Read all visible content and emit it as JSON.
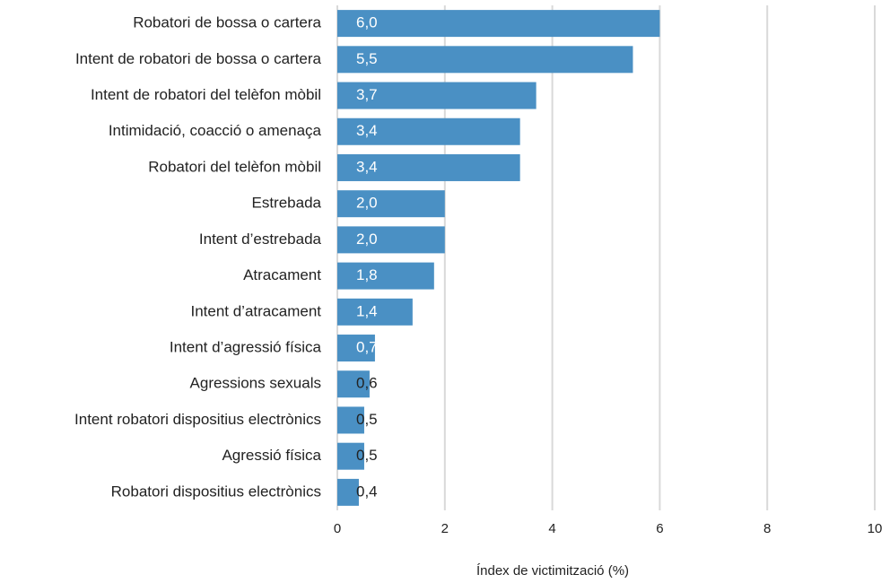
{
  "chart_data": {
    "type": "bar",
    "orientation": "horizontal",
    "x_label": "Índex de victimització (%)",
    "categories": [
      "Robatori de bossa o cartera",
      "Intent de robatori de bossa o cartera",
      "Intent de robatori del telèfon mòbil",
      "Intimidació, coacció o amenaça",
      "Robatori del telèfon mòbil",
      "Estrebada",
      "Intent d’estrebada",
      "Atracament",
      "Intent d’atracament",
      "Intent d’agressió física",
      "Agressions sexuals",
      "Intent robatori dispositius electrònics",
      "Agressió física",
      "Robatori dispositius electrònics"
    ],
    "values": [
      6.0,
      5.5,
      3.7,
      3.4,
      3.4,
      2.0,
      2.0,
      1.8,
      1.4,
      0.7,
      0.6,
      0.5,
      0.5,
      0.4
    ],
    "value_labels": [
      "6,0",
      "5,5",
      "3,7",
      "3,4",
      "3,4",
      "2,0",
      "2,0",
      "1,8",
      "1,4",
      "0,7",
      "0,6",
      "0,5",
      "0,5",
      "0,4"
    ],
    "color": "#4a90c4",
    "xlim": [
      0,
      10
    ],
    "xticks": [
      0,
      2,
      4,
      6,
      8,
      10
    ],
    "grid": true
  }
}
